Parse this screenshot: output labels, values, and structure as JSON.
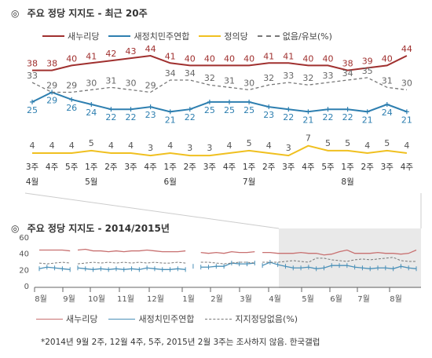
{
  "top_chart": {
    "title": "주요 정당 지지도 - 최근 20주",
    "title_mark": "◎",
    "legend": [
      {
        "name": "새누리당",
        "color": "#a0302f",
        "style": "solid"
      },
      {
        "name": "새정치민주연합",
        "color": "#2e7fb0",
        "style": "solid"
      },
      {
        "name": "정의당",
        "color": "#f0c020",
        "style": "solid"
      },
      {
        "name": "없음/유보(%)",
        "color": "#777777",
        "style": "dashed"
      }
    ]
  },
  "bottom_chart": {
    "title": "주요 정당 지지도 - 2014/2015년",
    "title_mark": "◎",
    "legend": [
      {
        "name": "새누리당",
        "color": "#c87070",
        "style": "solid"
      },
      {
        "name": "새정치민주연합",
        "color": "#4a90b8",
        "style": "solid"
      },
      {
        "name": "지지정당없음(%)",
        "color": "#777777",
        "style": "dashed"
      }
    ]
  },
  "footnote": "*2014년 9월 2주, 12월 4주, 5주, 2015년 2월 3주는 조사하지 않음. 한국갤럽",
  "chart_data": [
    {
      "type": "line",
      "title": "주요 정당 지지도 - 최근 20주",
      "categories": [
        "3주",
        "4주",
        "5주",
        "1주",
        "2주",
        "3주",
        "4주",
        "1주",
        "2주",
        "3주",
        "4주",
        "1주",
        "2주",
        "3주",
        "4주",
        "5주",
        "1주",
        "2주",
        "3주",
        "4주"
      ],
      "month_labels": [
        {
          "index": 0,
          "label": "4월"
        },
        {
          "index": 3,
          "label": "5월"
        },
        {
          "index": 7,
          "label": "6월"
        },
        {
          "index": 11,
          "label": "7월"
        },
        {
          "index": 16,
          "label": "8월"
        }
      ],
      "series": [
        {
          "name": "새누리당",
          "color": "#a0302f",
          "values": [
            38,
            38,
            40,
            41,
            42,
            43,
            44,
            41,
            40,
            40,
            40,
            40,
            41,
            41,
            40,
            40,
            38,
            39,
            40,
            44
          ]
        },
        {
          "name": "새정치민주연합",
          "color": "#2e7fb0",
          "values": [
            25,
            29,
            26,
            24,
            22,
            22,
            23,
            21,
            22,
            25,
            25,
            25,
            23,
            22,
            21,
            22,
            22,
            21,
            24,
            21
          ]
        },
        {
          "name": "정의당",
          "color": "#f0c020",
          "values": [
            4,
            4,
            4,
            5,
            4,
            4,
            3,
            4,
            3,
            3,
            4,
            5,
            4,
            3,
            7,
            5,
            5,
            4,
            5,
            4
          ]
        },
        {
          "name": "없음/유보(%)",
          "color": "#777777",
          "dashed": true,
          "values": [
            33,
            29,
            29,
            30,
            31,
            30,
            29,
            34,
            34,
            32,
            31,
            30,
            32,
            33,
            32,
            33,
            34,
            35,
            31,
            30
          ]
        }
      ],
      "ylim": [
        0,
        50
      ]
    },
    {
      "type": "line",
      "title": "주요 정당 지지도 - 2014/2015년",
      "x_labels": [
        "8월",
        "9월",
        "10월",
        "11월",
        "12월",
        "1월",
        "2월",
        "3월",
        "4월",
        "5월",
        "6월",
        "7월",
        "8월"
      ],
      "yticks": [
        0,
        20,
        40,
        60
      ],
      "ylim": [
        0,
        60
      ],
      "highlight_range_label": "최근 20주",
      "series": [
        {
          "name": "새누리당",
          "color": "#c87070",
          "values": [
            44,
            44,
            44,
            44,
            43,
            44,
            45,
            43,
            43,
            42,
            43,
            42,
            43,
            43,
            44,
            43,
            42,
            42,
            42,
            43,
            40,
            41,
            40,
            41,
            40,
            42,
            41,
            41,
            42,
            41,
            41,
            40,
            40,
            40,
            41,
            40,
            40,
            38,
            39,
            42,
            44,
            40,
            40,
            40,
            41,
            40,
            40,
            39,
            40,
            44
          ]
        },
        {
          "name": "새정치민주연합",
          "color": "#4a90b8",
          "values": [
            21,
            23,
            22,
            21,
            20,
            22,
            21,
            20,
            21,
            20,
            21,
            20,
            21,
            20,
            22,
            21,
            20,
            20,
            21,
            20,
            24,
            23,
            23,
            24,
            24,
            28,
            27,
            27,
            28,
            25,
            29,
            26,
            24,
            22,
            22,
            23,
            21,
            22,
            25,
            25,
            25,
            23,
            22,
            21,
            22,
            22,
            21,
            24,
            22,
            21
          ]
        },
        {
          "name": "지지정당없음(%)",
          "color": "#777777",
          "dashed": true,
          "values": [
            28,
            27,
            28,
            29,
            28,
            27,
            28,
            29,
            28,
            29,
            28,
            29,
            28,
            29,
            28,
            29,
            28,
            28,
            29,
            28,
            30,
            29,
            29,
            28,
            27,
            28,
            29,
            29,
            28,
            29,
            29,
            29,
            30,
            31,
            30,
            29,
            34,
            34,
            32,
            31,
            30,
            32,
            33,
            32,
            33,
            34,
            35,
            31,
            30,
            30
          ]
        }
      ]
    }
  ]
}
